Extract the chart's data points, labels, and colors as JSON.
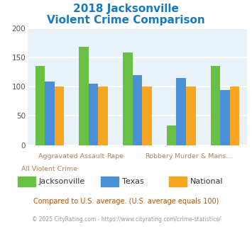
{
  "title_line1": "2018 Jacksonville",
  "title_line2": "Violent Crime Comparison",
  "title_color": "#1a7abf",
  "categories": [
    "All Violent Crime",
    "Aggravated Assault",
    "Rape",
    "Robbery",
    "Murder & Mans..."
  ],
  "series": {
    "Jacksonville": [
      135,
      168,
      158,
      33,
      135
    ],
    "Texas": [
      109,
      105,
      120,
      115,
      94
    ],
    "National": [
      100,
      100,
      100,
      100,
      100
    ]
  },
  "colors": {
    "Jacksonville": "#6abf45",
    "Texas": "#4a90d9",
    "National": "#f5a623"
  },
  "ylim": [
    0,
    200
  ],
  "yticks": [
    0,
    50,
    100,
    150,
    200
  ],
  "plot_bg_color": "#e8f2f8",
  "grid_color": "#ffffff",
  "xlabel_color": "#b08060",
  "legend_fontsize": 8,
  "title_fontsize": 11,
  "footnote1": "Compared to U.S. average. (U.S. average equals 100)",
  "footnote2": "© 2025 CityRating.com - https://www.cityrating.com/crime-statistics/",
  "footnote1_color": "#c05000",
  "footnote2_color": "#999999",
  "footnote2_linkcolor": "#4a90d9"
}
